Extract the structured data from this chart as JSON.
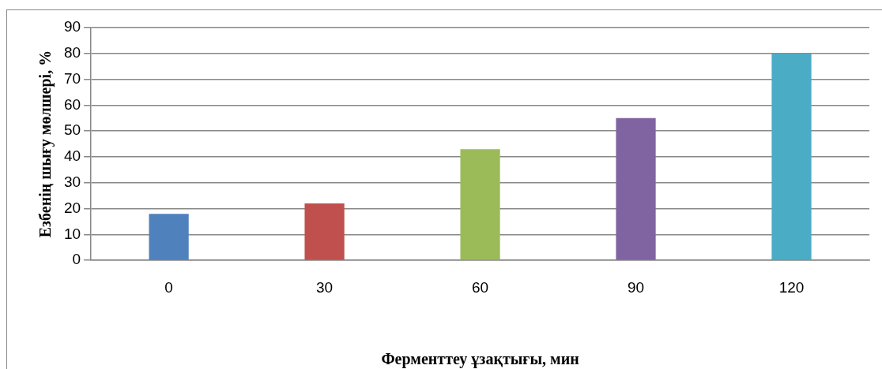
{
  "chart_data": {
    "type": "bar",
    "xlabel": "Ферменттеу ұзақтығы, мин",
    "ylabel": "Езбенің шығу мөлшері, %",
    "categories": [
      "0",
      "30",
      "60",
      "90",
      "120"
    ],
    "values": [
      18,
      22,
      43,
      55,
      80
    ],
    "colors": [
      "#4f81bd",
      "#c0504d",
      "#9bbb59",
      "#8064a2",
      "#4bacc6"
    ],
    "ylim": [
      0,
      90
    ],
    "yticks": [
      0,
      10,
      20,
      30,
      40,
      50,
      60,
      70,
      80,
      90
    ],
    "grid": "y",
    "legend": false
  }
}
